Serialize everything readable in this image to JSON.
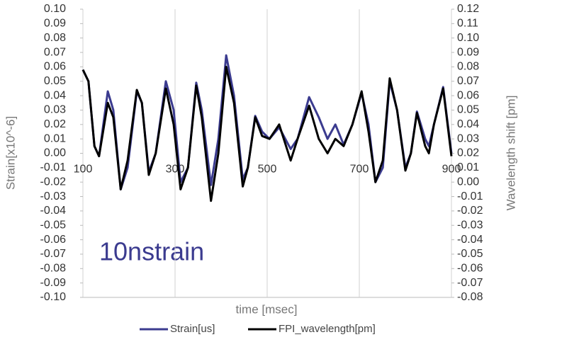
{
  "chart_data": {
    "type": "line",
    "ylabel": "Strain[x10^-6]",
    "y2label": "Wavelength  shift [pm]",
    "xlabel": "time [msec]",
    "annotation": "10nstrain",
    "x": [
      100,
      112,
      125,
      135,
      154,
      166,
      182,
      197,
      217,
      228,
      243,
      258,
      280,
      297,
      312,
      328,
      346,
      358,
      378,
      394,
      411,
      428,
      447,
      458,
      474,
      489,
      505,
      526,
      551,
      566,
      591,
      612,
      631,
      648,
      666,
      685,
      705,
      720,
      735,
      751,
      766,
      782,
      800,
      812,
      825,
      843,
      851,
      862,
      882,
      900
    ],
    "series": [
      {
        "name": "Strain[us]",
        "color": "#3b3b8f",
        "values": [
          0.058,
          0.05,
          0.005,
          -0.002,
          0.043,
          0.03,
          -0.025,
          -0.01,
          0.043,
          0.035,
          -0.013,
          0,
          0.05,
          0.03,
          -0.02,
          -0.01,
          0.049,
          0.03,
          -0.022,
          0.01,
          0.068,
          0.04,
          -0.018,
          -0.01,
          0.026,
          0.015,
          0.01,
          0.018,
          0.003,
          0.01,
          0.039,
          0.025,
          0.01,
          0.02,
          0.006,
          0.02,
          0.042,
          0.02,
          -0.02,
          -0.01,
          0.05,
          0.03,
          -0.01,
          0,
          0.029,
          0.01,
          0.005,
          0.02,
          0.046,
          0
        ]
      },
      {
        "name": "FPI_wavelength[pm]",
        "color": "#000000",
        "axis": "y2",
        "values": [
          0.078,
          0.07,
          0.025,
          0.018,
          0.055,
          0.045,
          -0.005,
          0.015,
          0.064,
          0.055,
          0.005,
          0.02,
          0.065,
          0.04,
          -0.005,
          0.01,
          0.067,
          0.045,
          -0.013,
          0.02,
          0.08,
          0.055,
          -0.003,
          0.01,
          0.045,
          0.032,
          0.03,
          0.04,
          0.015,
          0.03,
          0.053,
          0.03,
          0.02,
          0.03,
          0.025,
          0.04,
          0.063,
          0.035,
          0,
          0.015,
          0.072,
          0.05,
          0.008,
          0.02,
          0.048,
          0.025,
          0.02,
          0.04,
          0.065,
          0.018
        ]
      }
    ],
    "xlim": [
      100,
      900
    ],
    "xticks": [
      100,
      300,
      500,
      700,
      900
    ],
    "ylim": [
      -0.1,
      0.1
    ],
    "yticks": [
      {
        "value": -0.1,
        "label": "-0.10"
      },
      -0.09,
      -0.08,
      -0.07,
      -0.06,
      -0.05,
      -0.04,
      -0.03,
      -0.02,
      -0.01,
      {
        "value": 0,
        "label": "0.00"
      },
      0.01,
      0.02,
      0.03,
      0.04,
      0.05,
      0.06,
      0.07,
      0.08,
      0.09,
      {
        "value": 0.1,
        "label": "0.10"
      }
    ],
    "y2lim": [
      -0.08,
      0.12
    ],
    "y2ticks": [
      -0.08,
      -0.07,
      -0.06,
      -0.05,
      -0.04,
      -0.03,
      -0.02,
      -0.01,
      {
        "value": 0,
        "label": "0.00"
      },
      0.01,
      0.02,
      0.03,
      0.04,
      0.05,
      0.06,
      0.07,
      0.08,
      0.09,
      {
        "value": 0.1,
        "label": "0.10"
      },
      0.11,
      0.12
    ],
    "grid": true
  }
}
